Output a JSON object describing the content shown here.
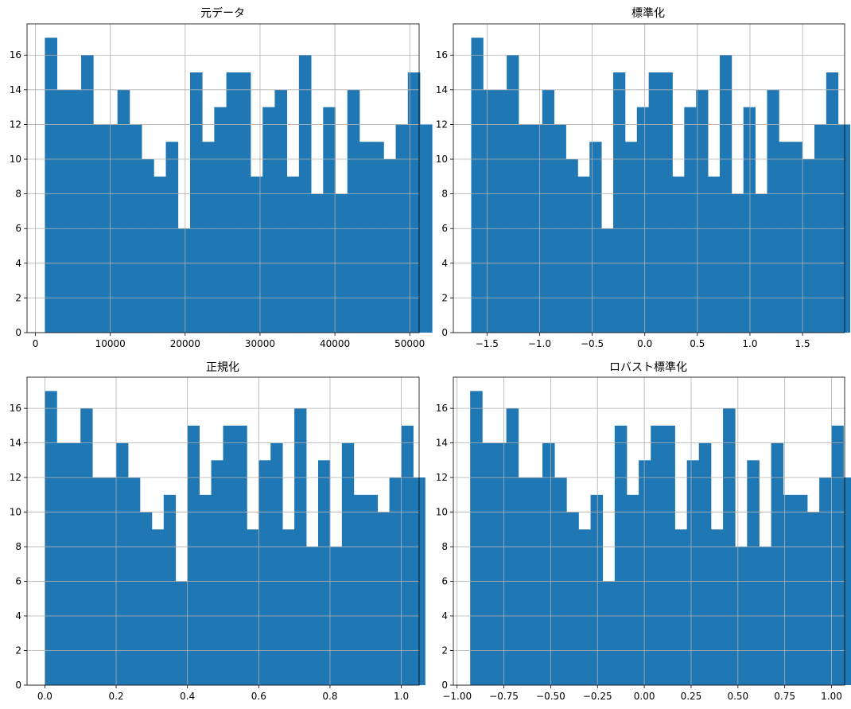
{
  "chart_data": [
    {
      "type": "bar",
      "title": "元データ",
      "xlabel": "",
      "ylabel": "",
      "x_range": [
        -1120,
        51250
      ],
      "ylim": [
        0,
        17.8
      ],
      "xticks": [
        0,
        10000,
        20000,
        30000,
        40000,
        50000
      ],
      "xtick_labels": [
        "0",
        "10000",
        "20000",
        "30000",
        "40000",
        "50000"
      ],
      "yticks": [
        0,
        2,
        4,
        6,
        8,
        10,
        12,
        14,
        16
      ],
      "ytick_labels": [
        "0",
        "2",
        "4",
        "6",
        "8",
        "10",
        "12",
        "14",
        "16"
      ],
      "grid": true,
      "bar_color": "#1f77b4",
      "bins": {
        "start": 1260,
        "width": 1616,
        "counts": [
          17,
          14,
          14,
          16,
          12,
          12,
          14,
          12,
          10,
          9,
          11,
          6,
          15,
          11,
          13,
          15,
          15,
          9,
          13,
          14,
          9,
          16,
          8,
          13,
          8,
          14,
          11,
          11,
          10,
          12,
          15,
          12
        ]
      }
    },
    {
      "type": "bar",
      "title": "標準化",
      "xlabel": "",
      "ylabel": "",
      "x_range": [
        -1.82,
        1.9
      ],
      "ylim": [
        0,
        17.8
      ],
      "xticks": [
        -1.5,
        -1.0,
        -0.5,
        0.0,
        0.5,
        1.0,
        1.5
      ],
      "xtick_labels": [
        "−1.5",
        "−1.0",
        "−0.5",
        "0.0",
        "0.5",
        "1.0",
        "1.5"
      ],
      "yticks": [
        0,
        2,
        4,
        6,
        8,
        10,
        12,
        14,
        16
      ],
      "ytick_labels": [
        "0",
        "2",
        "4",
        "6",
        "8",
        "10",
        "12",
        "14",
        "16"
      ],
      "grid": true,
      "bar_color": "#1f77b4",
      "bins": {
        "start": -1.65,
        "width": 0.1125,
        "counts": [
          17,
          14,
          14,
          16,
          12,
          12,
          14,
          12,
          10,
          9,
          11,
          6,
          15,
          11,
          13,
          15,
          15,
          9,
          13,
          14,
          9,
          16,
          8,
          13,
          8,
          14,
          11,
          11,
          10,
          12,
          15,
          12
        ]
      }
    },
    {
      "type": "bar",
      "title": "正規化",
      "xlabel": "",
      "ylabel": "",
      "x_range": [
        -0.05,
        1.05
      ],
      "ylim": [
        0,
        17.8
      ],
      "xticks": [
        0.0,
        0.2,
        0.4,
        0.6,
        0.8,
        1.0
      ],
      "xtick_labels": [
        "0.0",
        "0.2",
        "0.4",
        "0.6",
        "0.8",
        "1.0"
      ],
      "yticks": [
        0,
        2,
        4,
        6,
        8,
        10,
        12,
        14,
        16
      ],
      "ytick_labels": [
        "0",
        "2",
        "4",
        "6",
        "8",
        "10",
        "12",
        "14",
        "16"
      ],
      "grid": true,
      "bar_color": "#1f77b4",
      "bins": {
        "start": 0.0,
        "width": 0.03333,
        "counts": [
          17,
          14,
          14,
          16,
          12,
          12,
          14,
          12,
          10,
          9,
          11,
          6,
          15,
          11,
          13,
          15,
          15,
          9,
          13,
          14,
          9,
          16,
          8,
          13,
          8,
          14,
          11,
          11,
          10,
          12,
          15,
          12
        ]
      }
    },
    {
      "type": "bar",
      "title": "ロバスト標準化",
      "xlabel": "",
      "ylabel": "",
      "x_range": [
        -1.02,
        1.07
      ],
      "ylim": [
        0,
        17.8
      ],
      "xticks": [
        -1.0,
        -0.75,
        -0.5,
        -0.25,
        0.0,
        0.25,
        0.5,
        0.75,
        1.0
      ],
      "xtick_labels": [
        "−1.00",
        "−0.75",
        "−0.50",
        "−0.25",
        "0.00",
        "0.25",
        "0.50",
        "0.75",
        "1.00"
      ],
      "yticks": [
        0,
        2,
        4,
        6,
        8,
        10,
        12,
        14,
        16
      ],
      "ytick_labels": [
        "0",
        "2",
        "4",
        "6",
        "8",
        "10",
        "12",
        "14",
        "16"
      ],
      "grid": true,
      "bar_color": "#1f77b4",
      "bins": {
        "start": -0.93,
        "width": 0.0643,
        "counts": [
          17,
          14,
          14,
          16,
          12,
          12,
          14,
          12,
          10,
          9,
          11,
          6,
          15,
          11,
          13,
          15,
          15,
          9,
          13,
          14,
          9,
          16,
          8,
          13,
          8,
          14,
          11,
          11,
          10,
          12,
          15,
          12
        ]
      }
    }
  ]
}
